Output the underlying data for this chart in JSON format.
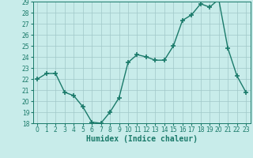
{
  "x": [
    0,
    1,
    2,
    3,
    4,
    5,
    6,
    7,
    8,
    9,
    10,
    11,
    12,
    13,
    14,
    15,
    16,
    17,
    18,
    19,
    20,
    21,
    22,
    23
  ],
  "y": [
    22,
    22.5,
    22.5,
    20.8,
    20.5,
    19.5,
    18.1,
    18,
    19,
    20.3,
    23.5,
    24.2,
    24,
    23.7,
    23.7,
    25,
    27.3,
    27.8,
    28.8,
    28.5,
    29.2,
    24.8,
    22.3,
    20.8
  ],
  "line_color": "#1a7a6a",
  "marker": "+",
  "marker_size": 4,
  "marker_lw": 1.2,
  "bg_color": "#c8ecea",
  "grid_color": "#a0c8c8",
  "xlabel": "Humidex (Indice chaleur)",
  "xlim": [
    -0.5,
    23.5
  ],
  "ylim": [
    18,
    29
  ],
  "yticks": [
    18,
    19,
    20,
    21,
    22,
    23,
    24,
    25,
    26,
    27,
    28,
    29
  ],
  "xticks": [
    0,
    1,
    2,
    3,
    4,
    5,
    6,
    7,
    8,
    9,
    10,
    11,
    12,
    13,
    14,
    15,
    16,
    17,
    18,
    19,
    20,
    21,
    22,
    23
  ],
  "tick_label_fontsize": 5.5,
  "xlabel_fontsize": 7,
  "line_width": 1.0
}
